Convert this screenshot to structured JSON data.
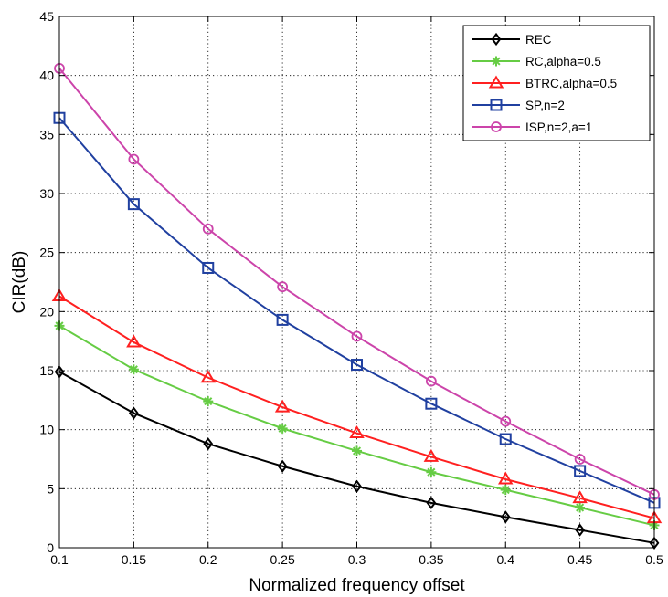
{
  "chart_data": {
    "type": "line",
    "title": "",
    "xlabel": "Normalized frequency offset",
    "ylabel": "CIR(dB)",
    "xlim": [
      0.1,
      0.5
    ],
    "ylim": [
      0,
      45
    ],
    "x_ticks": [
      "0.1",
      "0.15",
      "0.2",
      "0.25",
      "0.3",
      "0.35",
      "0.4",
      "0.45",
      "0.5"
    ],
    "y_ticks": [
      "0",
      "5",
      "10",
      "15",
      "20",
      "25",
      "30",
      "35",
      "40",
      "45"
    ],
    "grid": true,
    "legend_position": "top-right",
    "x": [
      0.1,
      0.15,
      0.2,
      0.25,
      0.3,
      0.35,
      0.4,
      0.45,
      0.5
    ],
    "series": [
      {
        "name": "REC",
        "color": "#000000",
        "marker": "diamond",
        "values": [
          14.9,
          11.4,
          8.8,
          6.9,
          5.2,
          3.8,
          2.6,
          1.5,
          0.4
        ]
      },
      {
        "name": "RC,alpha=0.5",
        "color": "#66cc44",
        "marker": "star",
        "values": [
          18.8,
          15.1,
          12.4,
          10.1,
          8.2,
          6.4,
          4.9,
          3.4,
          1.9
        ]
      },
      {
        "name": "BTRC,alpha=0.5",
        "color": "#ff2020",
        "marker": "triangle",
        "values": [
          21.3,
          17.4,
          14.4,
          11.9,
          9.7,
          7.7,
          5.8,
          4.2,
          2.5
        ]
      },
      {
        "name": "SP,n=2",
        "color": "#2040a0",
        "marker": "square",
        "values": [
          36.4,
          29.1,
          23.7,
          19.3,
          15.5,
          12.2,
          9.2,
          6.5,
          3.8
        ]
      },
      {
        "name": "ISP,n=2,a=1",
        "color": "#cc44aa",
        "marker": "circle",
        "values": [
          40.6,
          32.9,
          27.0,
          22.1,
          17.9,
          14.1,
          10.7,
          7.5,
          4.5
        ]
      }
    ]
  }
}
